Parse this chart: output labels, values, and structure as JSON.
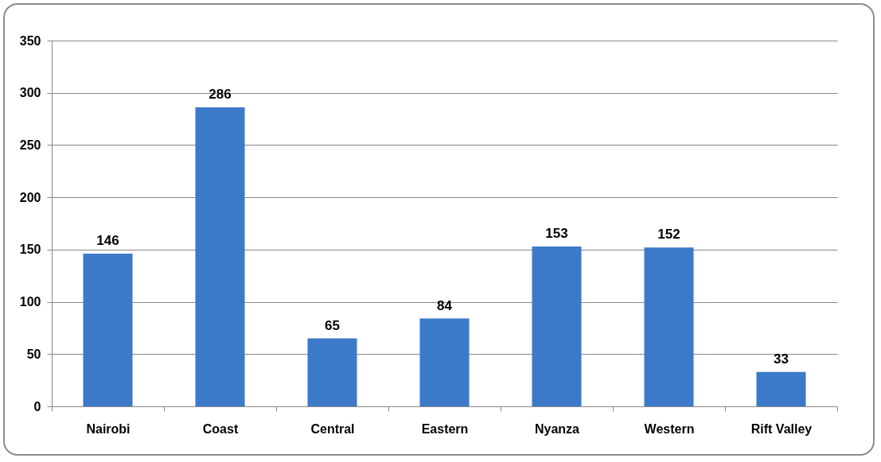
{
  "chart_data": {
    "type": "bar",
    "categories": [
      "Nairobi",
      "Coast",
      "Central",
      "Eastern",
      "Nyanza",
      "Western",
      "Rift Valley"
    ],
    "values": [
      146,
      286,
      65,
      84,
      153,
      152,
      33
    ],
    "color": "#3c7ac9",
    "ylim": [
      0,
      350
    ],
    "yticks": [
      0,
      50,
      100,
      150,
      200,
      250,
      300,
      350
    ],
    "grid": "y",
    "data_labels": true
  }
}
